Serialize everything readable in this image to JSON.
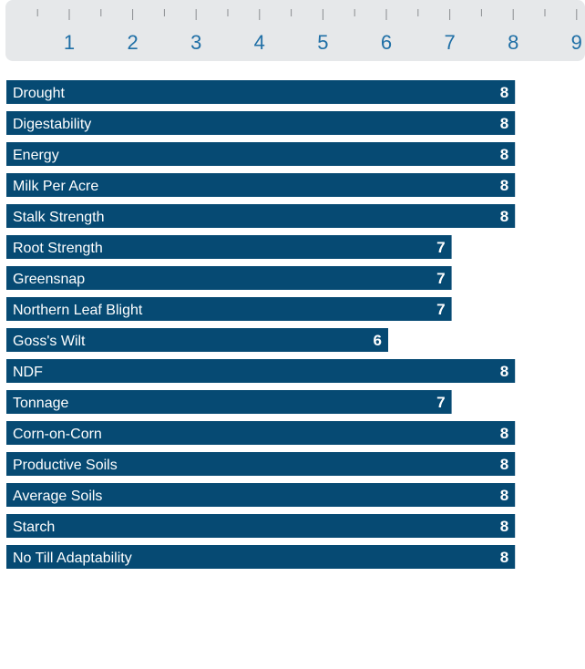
{
  "chart_data": {
    "type": "bar",
    "orientation": "horizontal",
    "categories": [
      "Drought",
      "Digestability",
      "Energy",
      "Milk Per Acre",
      "Stalk Strength",
      "Root Strength",
      "Greensnap",
      "Northern Leaf Blight",
      "Goss's Wilt",
      "NDF",
      "Tonnage",
      "Corn-on-Corn",
      "Productive Soils",
      "Average Soils",
      "Starch",
      "No Till Adaptability"
    ],
    "values": [
      8,
      8,
      8,
      8,
      8,
      7,
      7,
      7,
      6,
      8,
      7,
      8,
      8,
      8,
      8,
      8
    ],
    "ticks": [
      "1",
      "2",
      "3",
      "4",
      "5",
      "6",
      "7",
      "8",
      "9"
    ],
    "xlim": [
      1,
      9
    ],
    "legend": "none",
    "grid": false,
    "colors": {
      "bar": "#064a73",
      "scale_background": "#e6e8ea",
      "tick_label": "#1f6fa6",
      "tick_line": "#8a8d90",
      "bar_text": "#ffffff"
    }
  }
}
